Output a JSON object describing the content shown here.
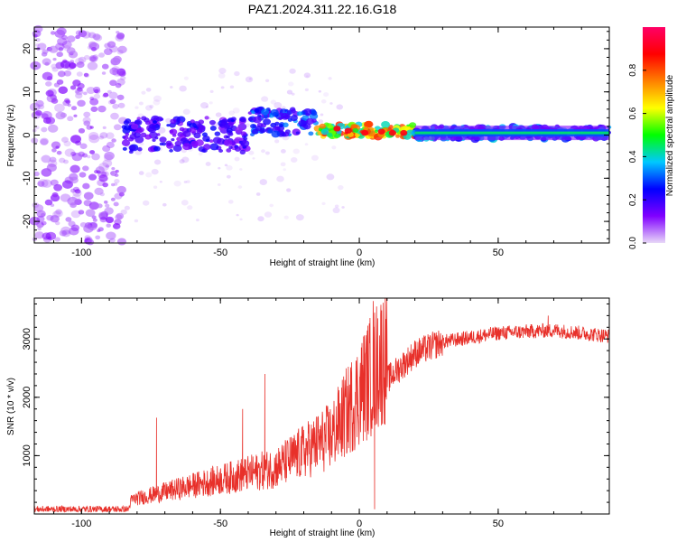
{
  "title": "PAZ1.2024.311.22.16.G18",
  "chart_data": [
    {
      "type": "heatmap",
      "xlabel": "Height of straight line (km)",
      "ylabel": "Frequency (Hz)",
      "xlim": [
        -117,
        90
      ],
      "ylim": [
        -25,
        25
      ],
      "xticks": [
        -100,
        -50,
        0,
        50
      ],
      "yticks": [
        -20,
        -10,
        0,
        10,
        20
      ],
      "colorbar": {
        "label": "Normalized spectral amplitude",
        "range": [
          0,
          1
        ],
        "ticks": [
          0.0,
          0.2,
          0.4,
          0.6,
          0.8
        ],
        "tick_labels": [
          "0.0",
          "0.2",
          "0.4",
          "0.6",
          "0.8"
        ],
        "colormap": [
          "#e8d8f8",
          "#8000ff",
          "#0000ff",
          "#00c8ff",
          "#00ff00",
          "#ffff00",
          "#ff8000",
          "#ff0000",
          "#ff0066"
        ]
      },
      "features": [
        {
          "x_range": [
            -117,
            -85
          ],
          "y_range": [
            -25,
            25
          ],
          "amplitude": 0.1,
          "description": "scattered noise"
        },
        {
          "x_range": [
            -85,
            -40
          ],
          "y_center": 0,
          "y_halfwidth": 4,
          "amplitude": 0.25
        },
        {
          "x_range": [
            -40,
            -15
          ],
          "y_center": 3,
          "y_halfwidth": 3,
          "amplitude": 0.35
        },
        {
          "x_range": [
            -15,
            20
          ],
          "y_center": 1,
          "y_halfwidth": 1.5,
          "amplitude": 0.9
        },
        {
          "x_range": [
            20,
            90
          ],
          "y_center": 0.5,
          "y_halfwidth": 1.5,
          "amplitude": 0.4
        }
      ]
    },
    {
      "type": "line",
      "xlabel": "Height of straight line (km)",
      "ylabel": "SNR (10 * v/v)",
      "xlim": [
        -117,
        90
      ],
      "ylim": [
        0,
        3700
      ],
      "xticks": [
        -100,
        -50,
        0,
        50
      ],
      "yticks": [
        1000,
        2000,
        3000
      ],
      "color": "#e8302a",
      "envelope": [
        {
          "x": -117,
          "y": 80
        },
        {
          "x": -83,
          "y": 80
        },
        {
          "x": -82,
          "y": 200
        },
        {
          "x": -60,
          "y": 400
        },
        {
          "x": -30,
          "y": 650
        },
        {
          "x": -10,
          "y": 1100
        },
        {
          "x": 0,
          "y": 1700
        },
        {
          "x": 5,
          "y": 2000
        },
        {
          "x": 10,
          "y": 2300
        },
        {
          "x": 20,
          "y": 2750
        },
        {
          "x": 30,
          "y": 2950
        },
        {
          "x": 50,
          "y": 3100
        },
        {
          "x": 70,
          "y": 3150
        },
        {
          "x": 90,
          "y": 3050
        }
      ],
      "spikes": [
        {
          "x": 5,
          "y": 3650
        },
        {
          "x": 5.5,
          "y": 80
        },
        {
          "x": -73,
          "y": 1650
        },
        {
          "x": -34,
          "y": 2400
        },
        {
          "x": -42,
          "y": 1800
        },
        {
          "x": 68,
          "y": 3400
        }
      ]
    }
  ]
}
